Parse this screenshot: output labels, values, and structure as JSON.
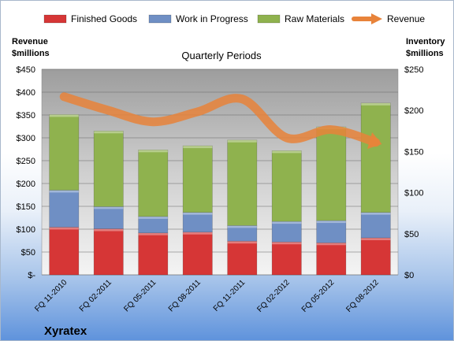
{
  "chart_data": {
    "type": "bar",
    "subtitle": "Quarterly Periods",
    "categories": [
      "FQ 11-2010",
      "FQ 02-2011",
      "FQ 05-2011",
      "FQ 08-2011",
      "FQ 11-2011",
      "FQ 02-2012",
      "FQ 05-2012",
      "FQ 08-2012"
    ],
    "stacked": true,
    "series": [
      {
        "name": "Finished Goods",
        "axis": "right",
        "color": "#d63636",
        "values": [
          58,
          56,
          51,
          52,
          41,
          40,
          39,
          45
        ]
      },
      {
        "name": "Work in Progress",
        "axis": "right",
        "color": "#6f8fc4",
        "values": [
          45,
          27,
          20,
          24,
          19,
          25,
          27,
          31
        ]
      },
      {
        "name": "Raw Materials",
        "axis": "right",
        "color": "#8fb24e",
        "values": [
          92,
          92,
          81,
          81,
          104,
          86,
          114,
          133
        ]
      },
      {
        "name": "Revenue",
        "type": "line",
        "axis": "left",
        "color": "#e8833a",
        "values": [
          390,
          360,
          335,
          357,
          385,
          300,
          318,
          290
        ]
      }
    ],
    "left_axis": {
      "label_line1": "Revenue",
      "label_line2": "$millions",
      "min": 0,
      "max": 450,
      "step": 50,
      "tick_labels": [
        "$-",
        "$50",
        "$100",
        "$150",
        "$200",
        "$250",
        "$300",
        "$350",
        "$400",
        "$450"
      ]
    },
    "right_axis": {
      "label_line1": "Inventory",
      "label_line2": "$millions",
      "min": 0,
      "max": 250,
      "step": 50,
      "tick_labels": [
        "$0",
        "$50",
        "$100",
        "$150",
        "$200",
        "$250"
      ]
    },
    "legend_position": "top",
    "grid": true
  },
  "company": "Xyratex"
}
